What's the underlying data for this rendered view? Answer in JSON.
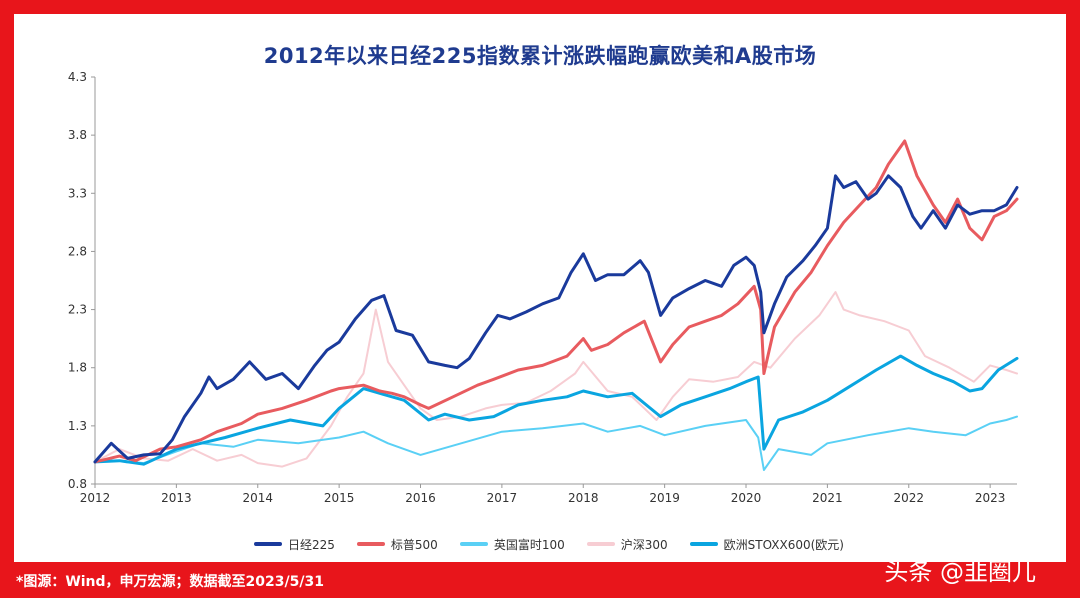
{
  "title": "2012年以来日经225指数累计涨跌幅跑赢欧美和A股市场",
  "footer": {
    "source": "*图源：Wind，申万宏源；数据截至2023/5/31",
    "brand": "头条 @韭圈儿"
  },
  "chart_data": {
    "type": "line",
    "title": "2012年以来日经225指数累计涨跌幅跑赢欧美和A股市场",
    "xlabel": "",
    "ylabel": "",
    "xlim": [
      2012.0,
      2023.33
    ],
    "ylim": [
      0.8,
      4.3
    ],
    "y_ticks": [
      "0.8",
      "1.3",
      "1.8",
      "2.3",
      "2.8",
      "3.3",
      "3.8",
      "4.3"
    ],
    "x_ticks": [
      "2012",
      "2013",
      "2014",
      "2015",
      "2016",
      "2017",
      "2018",
      "2019",
      "2020",
      "2021",
      "2022",
      "2023"
    ],
    "grid": false,
    "legend_position": "bottom",
    "series": [
      {
        "name": "日经225",
        "color": "#1a3a9c",
        "width": 3,
        "x": [
          2012.0,
          2012.2,
          2012.4,
          2012.6,
          2012.8,
          2012.95,
          2013.1,
          2013.3,
          2013.4,
          2013.5,
          2013.7,
          2013.9,
          2014.1,
          2014.3,
          2014.5,
          2014.7,
          2014.85,
          2015.0,
          2015.2,
          2015.4,
          2015.55,
          2015.7,
          2015.9,
          2016.1,
          2016.3,
          2016.45,
          2016.6,
          2016.8,
          2016.95,
          2017.1,
          2017.3,
          2017.5,
          2017.7,
          2017.85,
          2018.0,
          2018.15,
          2018.3,
          2018.5,
          2018.7,
          2018.8,
          2018.95,
          2019.1,
          2019.3,
          2019.5,
          2019.7,
          2019.85,
          2020.0,
          2020.1,
          2020.18,
          2020.22,
          2020.35,
          2020.5,
          2020.7,
          2020.85,
          2021.0,
          2021.1,
          2021.2,
          2021.35,
          2021.5,
          2021.6,
          2021.75,
          2021.9,
          2022.05,
          2022.15,
          2022.3,
          2022.45,
          2022.6,
          2022.75,
          2022.9,
          2023.05,
          2023.2,
          2023.33
        ],
        "values": [
          0.99,
          1.15,
          1.02,
          1.05,
          1.06,
          1.18,
          1.38,
          1.58,
          1.72,
          1.62,
          1.7,
          1.85,
          1.7,
          1.75,
          1.62,
          1.82,
          1.95,
          2.02,
          2.22,
          2.38,
          2.42,
          2.12,
          2.08,
          1.85,
          1.82,
          1.8,
          1.88,
          2.1,
          2.25,
          2.22,
          2.28,
          2.35,
          2.4,
          2.62,
          2.78,
          2.55,
          2.6,
          2.6,
          2.72,
          2.62,
          2.25,
          2.4,
          2.48,
          2.55,
          2.5,
          2.68,
          2.75,
          2.68,
          2.45,
          2.1,
          2.35,
          2.58,
          2.72,
          2.85,
          3.0,
          3.45,
          3.35,
          3.4,
          3.25,
          3.3,
          3.45,
          3.35,
          3.1,
          3.0,
          3.15,
          3.0,
          3.2,
          3.12,
          3.15,
          3.15,
          3.2,
          3.35
        ]
      },
      {
        "name": "标普500",
        "color": "#e85b5f",
        "width": 3,
        "x": [
          2012.0,
          2012.3,
          2012.5,
          2012.8,
          2013.0,
          2013.3,
          2013.5,
          2013.8,
          2014.0,
          2014.3,
          2014.6,
          2014.9,
          2015.0,
          2015.3,
          2015.5,
          2015.65,
          2015.8,
          2016.0,
          2016.1,
          2016.4,
          2016.7,
          2016.9,
          2017.2,
          2017.5,
          2017.8,
          2018.0,
          2018.1,
          2018.3,
          2018.5,
          2018.75,
          2018.95,
          2019.1,
          2019.3,
          2019.5,
          2019.7,
          2019.9,
          2020.1,
          2020.18,
          2020.22,
          2020.35,
          2020.6,
          2020.8,
          2021.0,
          2021.2,
          2021.4,
          2021.6,
          2021.75,
          2021.95,
          2022.1,
          2022.3,
          2022.45,
          2022.6,
          2022.75,
          2022.9,
          2023.05,
          2023.2,
          2023.33
        ],
        "values": [
          0.99,
          1.04,
          1.0,
          1.1,
          1.12,
          1.18,
          1.25,
          1.32,
          1.4,
          1.45,
          1.52,
          1.6,
          1.62,
          1.65,
          1.6,
          1.58,
          1.55,
          1.48,
          1.45,
          1.55,
          1.65,
          1.7,
          1.78,
          1.82,
          1.9,
          2.05,
          1.95,
          2.0,
          2.1,
          2.2,
          1.85,
          2.0,
          2.15,
          2.2,
          2.25,
          2.35,
          2.5,
          2.3,
          1.75,
          2.15,
          2.45,
          2.62,
          2.85,
          3.05,
          3.2,
          3.35,
          3.55,
          3.75,
          3.45,
          3.2,
          3.05,
          3.25,
          3.0,
          2.9,
          3.1,
          3.15,
          3.25
        ]
      },
      {
        "name": "英国富时100",
        "color": "#5ad0f5",
        "width": 2,
        "x": [
          2012.0,
          2012.3,
          2012.6,
          2013.0,
          2013.3,
          2013.7,
          2014.0,
          2014.5,
          2015.0,
          2015.3,
          2015.6,
          2016.0,
          2016.5,
          2017.0,
          2017.5,
          2018.0,
          2018.3,
          2018.7,
          2019.0,
          2019.5,
          2020.0,
          2020.15,
          2020.22,
          2020.4,
          2020.8,
          2021.0,
          2021.5,
          2022.0,
          2022.3,
          2022.7,
          2023.0,
          2023.2,
          2023.33
        ],
        "values": [
          0.99,
          1.0,
          0.98,
          1.08,
          1.15,
          1.12,
          1.18,
          1.15,
          1.2,
          1.25,
          1.15,
          1.05,
          1.15,
          1.25,
          1.28,
          1.32,
          1.25,
          1.3,
          1.22,
          1.3,
          1.35,
          1.2,
          0.92,
          1.1,
          1.05,
          1.15,
          1.22,
          1.28,
          1.25,
          1.22,
          1.32,
          1.35,
          1.38
        ]
      },
      {
        "name": "沪深300",
        "color": "#f7cdd3",
        "width": 2,
        "x": [
          2012.0,
          2012.3,
          2012.6,
          2012.9,
          2013.2,
          2013.5,
          2013.8,
          2014.0,
          2014.3,
          2014.6,
          2014.9,
          2015.1,
          2015.3,
          2015.45,
          2015.6,
          2015.8,
          2016.0,
          2016.2,
          2016.5,
          2016.8,
          2017.0,
          2017.3,
          2017.6,
          2017.9,
          2018.0,
          2018.3,
          2018.6,
          2018.9,
          2019.1,
          2019.3,
          2019.6,
          2019.9,
          2020.1,
          2020.3,
          2020.6,
          2020.9,
          2021.1,
          2021.2,
          2021.4,
          2021.7,
          2022.0,
          2022.2,
          2022.5,
          2022.8,
          2023.0,
          2023.2,
          2023.33
        ],
        "values": [
          0.99,
          1.1,
          1.02,
          1.0,
          1.1,
          1.0,
          1.05,
          0.98,
          0.95,
          1.02,
          1.3,
          1.55,
          1.75,
          2.3,
          1.85,
          1.65,
          1.45,
          1.35,
          1.38,
          1.45,
          1.48,
          1.5,
          1.6,
          1.75,
          1.85,
          1.6,
          1.55,
          1.35,
          1.55,
          1.7,
          1.68,
          1.72,
          1.85,
          1.8,
          2.05,
          2.25,
          2.45,
          2.3,
          2.25,
          2.2,
          2.12,
          1.9,
          1.8,
          1.68,
          1.82,
          1.78,
          1.75
        ]
      },
      {
        "name": "欧洲STOXX600(欧元)",
        "color": "#0aa5e0",
        "width": 3,
        "x": [
          2012.0,
          2012.3,
          2012.6,
          2013.0,
          2013.3,
          2013.6,
          2014.0,
          2014.4,
          2014.8,
          2015.0,
          2015.3,
          2015.5,
          2015.8,
          2016.1,
          2016.3,
          2016.6,
          2016.9,
          2017.2,
          2017.5,
          2017.8,
          2018.0,
          2018.3,
          2018.6,
          2018.95,
          2019.2,
          2019.5,
          2019.8,
          2020.0,
          2020.15,
          2020.22,
          2020.4,
          2020.7,
          2021.0,
          2021.3,
          2021.6,
          2021.9,
          2022.1,
          2022.3,
          2022.55,
          2022.75,
          2022.9,
          2023.1,
          2023.33
        ],
        "values": [
          0.99,
          1.0,
          0.97,
          1.1,
          1.15,
          1.2,
          1.28,
          1.35,
          1.3,
          1.45,
          1.62,
          1.58,
          1.52,
          1.35,
          1.4,
          1.35,
          1.38,
          1.48,
          1.52,
          1.55,
          1.6,
          1.55,
          1.58,
          1.38,
          1.48,
          1.55,
          1.62,
          1.68,
          1.72,
          1.1,
          1.35,
          1.42,
          1.52,
          1.65,
          1.78,
          1.9,
          1.82,
          1.75,
          1.68,
          1.6,
          1.62,
          1.78,
          1.88
        ]
      }
    ]
  }
}
